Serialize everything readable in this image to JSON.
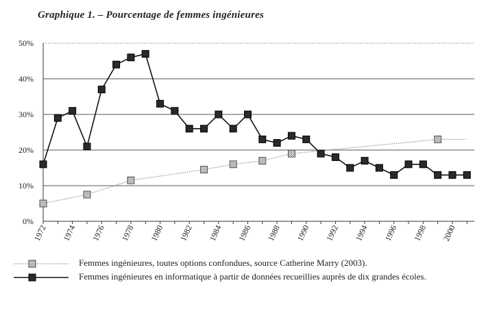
{
  "chart_data": {
    "type": "line",
    "title": "Graphique 1. – Pourcentage de femmes ingénieures",
    "xlabel": "",
    "ylabel": "",
    "xlim": [
      1972,
      2001.5
    ],
    "ylim": [
      0,
      50
    ],
    "y_ticks": [
      "0%",
      "10%",
      "20%",
      "30%",
      "40%",
      "50%"
    ],
    "x_ticks": [
      "1972",
      "1974",
      "1976",
      "1978",
      "1980",
      "1982",
      "1984",
      "1986",
      "1988",
      "1990",
      "1992",
      "1994",
      "1996",
      "1998",
      "2000"
    ],
    "grid": "horizontal",
    "legend_position": "bottom",
    "series": [
      {
        "name": "Femmes ingénieures, toutes options confondues, source Catherine Marry (2003).",
        "marker": "hatched-square",
        "line": "dotted",
        "color": "#b5b5b5",
        "x": [
          1972,
          1975,
          1978,
          1983,
          1985,
          1987,
          1989,
          1999
        ],
        "y": [
          5,
          7.5,
          11.5,
          14.5,
          16,
          17,
          19,
          23
        ],
        "trend_end": [
          2001,
          23
        ]
      },
      {
        "name": "Femmes ingénieures en informatique à partir de données recueillies auprès de dix grandes écoles.",
        "marker": "filled-square",
        "line": "solid",
        "color": "#111111",
        "x": [
          1972,
          1973,
          1974,
          1975,
          1976,
          1977,
          1978,
          1979,
          1980,
          1981,
          1982,
          1983,
          1984,
          1985,
          1986,
          1987,
          1988,
          1989,
          1990,
          1991,
          1992,
          1993,
          1994,
          1995,
          1996,
          1997,
          1998,
          1999,
          2000,
          2001
        ],
        "y": [
          16,
          29,
          31,
          21,
          37,
          44,
          46,
          47,
          33,
          31,
          26,
          26,
          30,
          26,
          30,
          23,
          22,
          24,
          23,
          19,
          18,
          15,
          17,
          15,
          13,
          16,
          16,
          13,
          13,
          13
        ]
      }
    ]
  }
}
